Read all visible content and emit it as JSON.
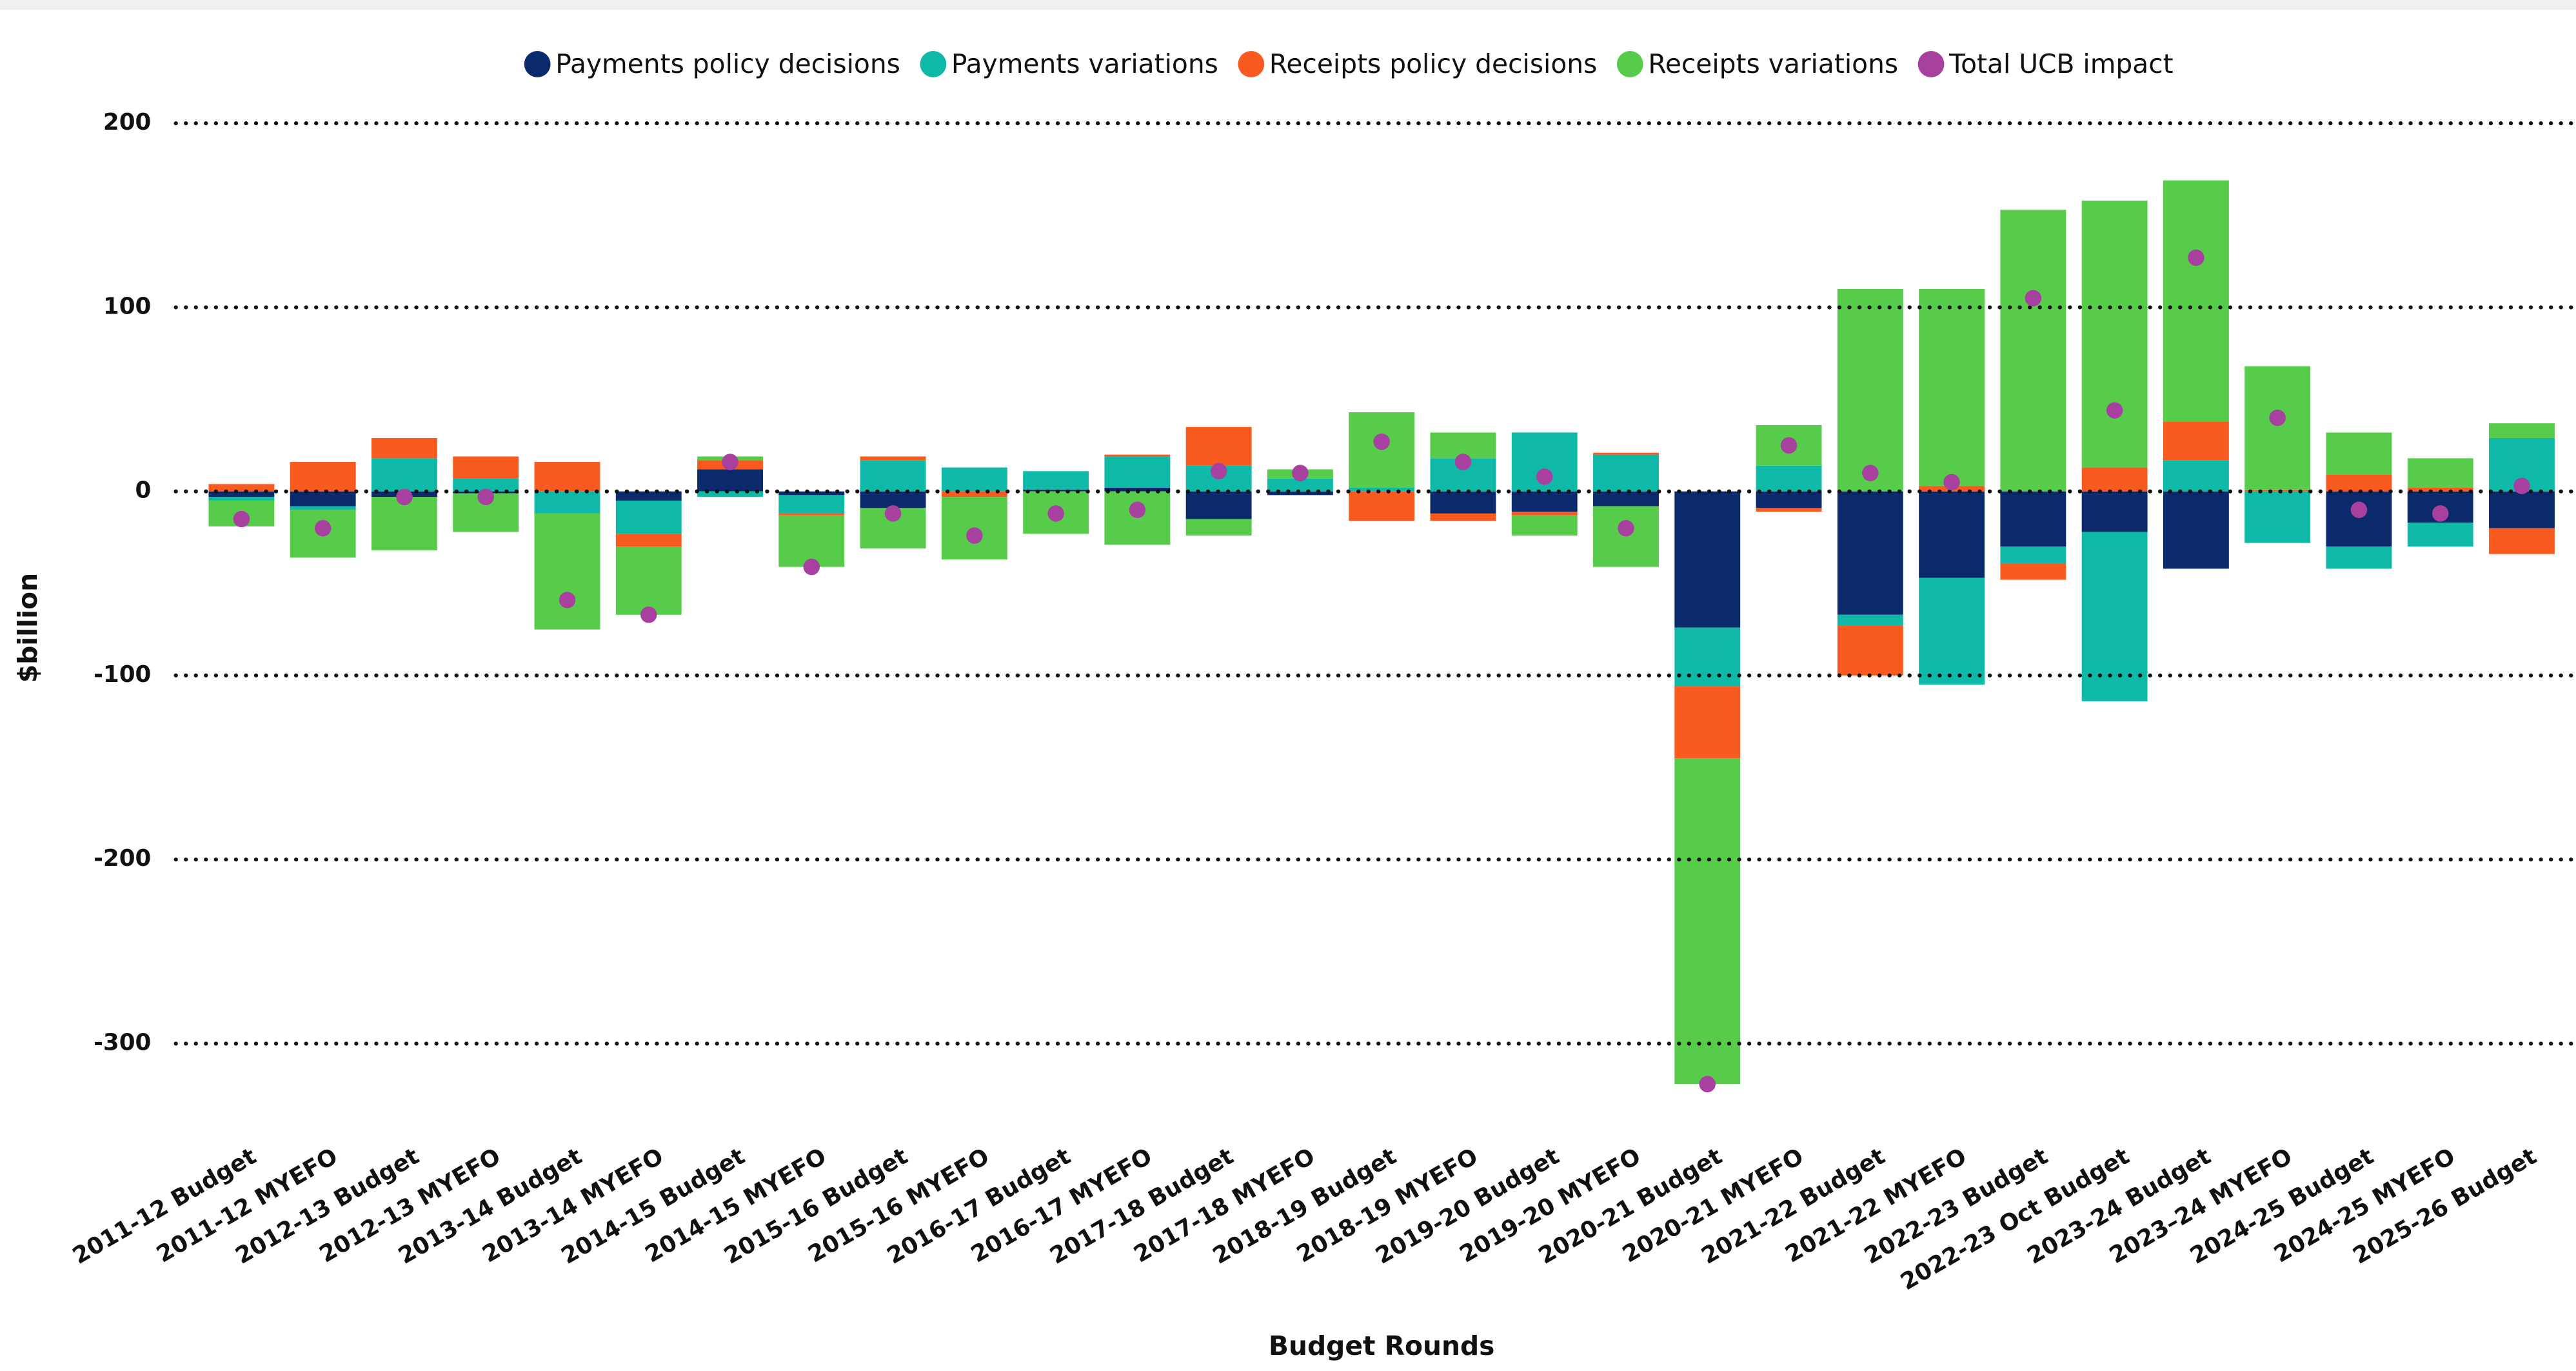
{
  "chart_data": {
    "type": "bar",
    "stacked": true,
    "x_label": "Budget Rounds",
    "y_label": "$billion",
    "categories": [
      "2011-12 Budget",
      "2011-12 MYEFO",
      "2012-13 Budget",
      "2012-13 MYEFO",
      "2013-14 Budget",
      "2013-14 MYEFO",
      "2014-15 Budget",
      "2014-15 MYEFO",
      "2015-16 Budget",
      "2015-16 MYEFO",
      "2016-17 Budget",
      "2016-17 MYEFO",
      "2017-18 Budget",
      "2017-18 MYEFO",
      "2018-19 Budget",
      "2018-19 MYEFO",
      "2019-20 Budget",
      "2019-20 MYEFO",
      "2020-21 Budget",
      "2020-21 MYEFO",
      "2021-22 Budget",
      "2021-22 MYEFO",
      "2022-23 Budget",
      "2022-23 Oct Budget",
      "2023-24 Budget",
      "2023–24 MYEFO",
      "2024-25 Budget",
      "2024-25 MYEFO",
      "2025-26 Budget"
    ],
    "series": [
      {
        "name": "Payments policy decisions",
        "color": "#0b2a6b",
        "type": "bar",
        "values": [
          -3,
          -8,
          -3,
          -1,
          0,
          -5,
          12,
          -2,
          -9,
          0,
          1,
          2,
          -15,
          -2,
          0,
          -12,
          -11,
          -8,
          -74,
          -9,
          -67,
          -47,
          -30,
          -22,
          -42,
          0,
          -30,
          -17,
          -20
        ]
      },
      {
        "name": "Payments variations",
        "color": "#0fb9a8",
        "type": "bar",
        "values": [
          -2,
          -2,
          18,
          7,
          -12,
          -18,
          -3,
          -10,
          17,
          13,
          10,
          17,
          14,
          7,
          2,
          18,
          32,
          20,
          -32,
          14,
          -6,
          -58,
          -9,
          -92,
          17,
          -28,
          -12,
          -13,
          29
        ]
      },
      {
        "name": "Receipts policy decisions",
        "color": "#f95a1f",
        "type": "bar",
        "values": [
          4,
          16,
          11,
          12,
          16,
          -7,
          5,
          -1,
          2,
          -3,
          0,
          1,
          21,
          0,
          -16,
          -4,
          -2,
          1,
          -39,
          -2,
          -27,
          3,
          -9,
          13,
          21,
          1,
          9,
          2,
          -14
        ]
      },
      {
        "name": "Receipts variations",
        "color": "#57cc4b",
        "type": "bar",
        "values": [
          -14,
          -26,
          -29,
          -21,
          -63,
          -37,
          2,
          -28,
          -22,
          -34,
          -23,
          -29,
          -9,
          5,
          41,
          14,
          -11,
          -33,
          -177,
          22,
          110,
          107,
          153,
          145,
          131,
          67,
          23,
          16,
          8
        ]
      },
      {
        "name": "Total UCB impact",
        "color": "#a7409e",
        "type": "scatter",
        "values": [
          -15,
          -20,
          -3,
          -3,
          -59,
          -67,
          16,
          -41,
          -12,
          -24,
          -12,
          -10,
          11,
          10,
          27,
          16,
          8,
          -20,
          -322,
          25,
          10,
          5,
          105,
          44,
          127,
          40,
          -10,
          -12,
          3
        ]
      }
    ],
    "ylim": [
      -340,
      210
    ],
    "yticks": [
      -300,
      -200,
      -100,
      0,
      100,
      200
    ],
    "grid": true,
    "legend": "top"
  }
}
